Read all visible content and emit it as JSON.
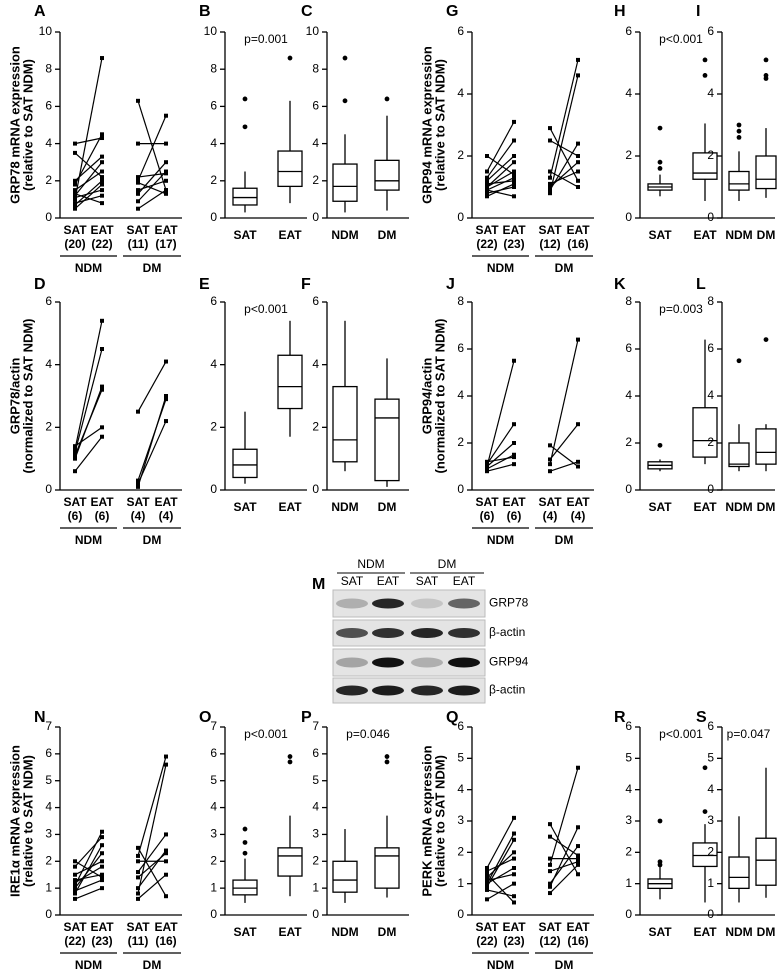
{
  "chart_data": [
    {
      "type": "line",
      "panel": "A",
      "ylabel": [
        "GRP78 mRNA expression",
        "(relative to SAT NDM)"
      ],
      "ylim": [
        0,
        10
      ],
      "yticks": [
        0,
        2,
        4,
        6,
        8,
        10
      ],
      "categories": [
        "SAT",
        "EAT",
        "SAT",
        "EAT"
      ],
      "n": [
        "(20)",
        "(22)",
        "(11)",
        "(17)"
      ],
      "groups": [
        {
          "name": "NDM",
          "pairs": [
            [
              0.5,
              1.8
            ],
            [
              0.8,
              1.2
            ],
            [
              1.0,
              8.6
            ],
            [
              1.2,
              3.0
            ],
            [
              1.5,
              2.5
            ],
            [
              1.8,
              4.5
            ],
            [
              0.7,
              2.0
            ],
            [
              2.0,
              3.3
            ],
            [
              1.3,
              0.8
            ],
            [
              3.5,
              2.2
            ],
            [
              4.0,
              4.3
            ],
            [
              1.1,
              1.5
            ]
          ]
        },
        {
          "name": "DM",
          "pairs": [
            [
              0.5,
              1.5
            ],
            [
              1.5,
              2.0
            ],
            [
              1.9,
              1.3
            ],
            [
              2.2,
              2.4
            ],
            [
              6.3,
              1.5
            ],
            [
              1.3,
              3.0
            ],
            [
              2.0,
              5.5
            ],
            [
              0.9,
              2.5
            ],
            [
              4.0,
              4.0
            ]
          ]
        }
      ]
    },
    {
      "type": "box",
      "panel": "B",
      "p": "p=0.001",
      "ylim": [
        0,
        10
      ],
      "yticks": [
        0,
        2,
        4,
        6,
        8,
        10
      ],
      "categories": [
        "SAT",
        "EAT"
      ],
      "boxes": [
        {
          "min": 0.3,
          "q1": 0.7,
          "median": 1.1,
          "q3": 1.6,
          "max": 2.5,
          "outliers": [
            4.9,
            6.4
          ]
        },
        {
          "min": 0.8,
          "q1": 1.7,
          "median": 2.5,
          "q3": 3.6,
          "max": 6.3,
          "outliers": [
            8.6
          ]
        }
      ]
    },
    {
      "type": "box",
      "panel": "C",
      "ylim": [
        0,
        10
      ],
      "yticks": [
        0,
        2,
        4,
        6,
        8,
        10
      ],
      "categories": [
        "NDM",
        "DM"
      ],
      "boxes": [
        {
          "min": 0.3,
          "q1": 0.9,
          "median": 1.7,
          "q3": 2.9,
          "max": 4.5,
          "outliers": [
            6.3,
            8.6
          ]
        },
        {
          "min": 0.4,
          "q1": 1.5,
          "median": 2.0,
          "q3": 3.1,
          "max": 5.5,
          "outliers": [
            6.4
          ]
        }
      ]
    },
    {
      "type": "line",
      "panel": "G",
      "ylabel": [
        "GRP94 mRNA expression",
        "(relative to SAT NDM)"
      ],
      "ylim": [
        0,
        6
      ],
      "yticks": [
        0,
        2,
        4,
        6
      ],
      "categories": [
        "SAT",
        "EAT",
        "SAT",
        "EAT"
      ],
      "n": [
        "(22)",
        "(23)",
        "(12)",
        "(16)"
      ],
      "groups": [
        {
          "name": "NDM",
          "pairs": [
            [
              0.8,
              1.0
            ],
            [
              0.9,
              1.3
            ],
            [
              1.0,
              1.5
            ],
            [
              1.1,
              1.2
            ],
            [
              1.2,
              2.0
            ],
            [
              2.0,
              1.4
            ],
            [
              1.5,
              3.1
            ],
            [
              0.9,
              0.7
            ],
            [
              1.0,
              1.8
            ],
            [
              1.3,
              2.5
            ],
            [
              0.7,
              1.1
            ]
          ]
        },
        {
          "name": "DM",
          "pairs": [
            [
              1.0,
              1.8
            ],
            [
              2.9,
              1.2
            ],
            [
              1.3,
              5.1
            ],
            [
              0.9,
              2.4
            ],
            [
              1.5,
              1.0
            ],
            [
              2.5,
              2.0
            ],
            [
              1.1,
              1.5
            ],
            [
              0.8,
              4.6
            ]
          ]
        }
      ]
    },
    {
      "type": "box",
      "panel": "H",
      "p": "p<0.001",
      "ylim": [
        0,
        6
      ],
      "yticks": [
        0,
        2,
        4,
        6
      ],
      "categories": [
        "SAT",
        "EAT"
      ],
      "boxes": [
        {
          "min": 0.7,
          "q1": 0.9,
          "median": 1.0,
          "q3": 1.1,
          "max": 1.4,
          "outliers": [
            1.6,
            1.8,
            2.9
          ]
        },
        {
          "min": 0.55,
          "q1": 1.25,
          "median": 1.45,
          "q3": 2.1,
          "max": 3.05,
          "outliers": [
            4.6,
            5.1
          ]
        }
      ]
    },
    {
      "type": "box",
      "panel": "I",
      "ylim": [
        0,
        6
      ],
      "yticks": [
        0,
        2,
        4,
        6
      ],
      "categories": [
        "NDM",
        "DM"
      ],
      "boxes": [
        {
          "min": 0.55,
          "q1": 0.9,
          "median": 1.1,
          "q3": 1.5,
          "max": 2.15,
          "outliers": [
            2.6,
            2.8,
            3.0
          ]
        },
        {
          "min": 0.65,
          "q1": 0.95,
          "median": 1.25,
          "q3": 2.0,
          "max": 2.9,
          "outliers": [
            4.5,
            4.6,
            5.1
          ]
        }
      ]
    },
    {
      "type": "line",
      "panel": "D",
      "ylabel": [
        "GRP78/actin",
        "(normalized to SAT NDM)"
      ],
      "ylim": [
        0,
        6
      ],
      "yticks": [
        0,
        2,
        4,
        6
      ],
      "categories": [
        "SAT",
        "EAT",
        "SAT",
        "EAT"
      ],
      "n": [
        "(6)",
        "(6)",
        "(4)",
        "(4)"
      ],
      "groups": [
        {
          "name": "NDM",
          "pairs": [
            [
              0.6,
              1.7
            ],
            [
              1.0,
              3.3
            ],
            [
              1.2,
              4.5
            ],
            [
              1.3,
              5.4
            ],
            [
              1.4,
              2.0
            ],
            [
              1.1,
              3.2
            ]
          ]
        },
        {
          "name": "DM",
          "pairs": [
            [
              2.5,
              4.1
            ],
            [
              0.2,
              2.2
            ],
            [
              0.3,
              2.9
            ],
            [
              0.1,
              3.0
            ]
          ]
        }
      ]
    },
    {
      "type": "box",
      "panel": "E",
      "p": "p<0.001",
      "ylim": [
        0,
        6
      ],
      "yticks": [
        0,
        2,
        4,
        6
      ],
      "categories": [
        "SAT",
        "EAT"
      ],
      "boxes": [
        {
          "min": 0.2,
          "q1": 0.4,
          "median": 0.8,
          "q3": 1.3,
          "max": 2.5,
          "outliers": []
        },
        {
          "min": 1.7,
          "q1": 2.6,
          "median": 3.3,
          "q3": 4.3,
          "max": 5.4,
          "outliers": []
        }
      ]
    },
    {
      "type": "box",
      "panel": "F",
      "ylim": [
        0,
        6
      ],
      "yticks": [
        0,
        2,
        4,
        6
      ],
      "categories": [
        "NDM",
        "DM"
      ],
      "boxes": [
        {
          "min": 0.6,
          "q1": 0.9,
          "median": 1.6,
          "q3": 3.3,
          "max": 5.4,
          "outliers": []
        },
        {
          "min": 0.1,
          "q1": 0.3,
          "median": 2.3,
          "q3": 2.9,
          "max": 4.2,
          "outliers": []
        }
      ]
    },
    {
      "type": "line",
      "panel": "J",
      "ylabel": [
        "GRP94/actin",
        "(normalized to SAT NDM)"
      ],
      "ylim": [
        0,
        8
      ],
      "yticks": [
        0,
        2,
        4,
        6,
        8
      ],
      "categories": [
        "SAT",
        "EAT",
        "SAT",
        "EAT"
      ],
      "n": [
        "(6)",
        "(6)",
        "(4)",
        "(4)"
      ],
      "groups": [
        {
          "name": "NDM",
          "pairs": [
            [
              0.8,
              1.1
            ],
            [
              0.9,
              1.5
            ],
            [
              1.0,
              2.0
            ],
            [
              1.1,
              2.8
            ],
            [
              1.0,
              5.5
            ],
            [
              1.2,
              1.4
            ]
          ]
        },
        {
          "name": "DM",
          "pairs": [
            [
              0.8,
              1.2
            ],
            [
              1.3,
              2.8
            ],
            [
              1.9,
              1.0
            ],
            [
              1.1,
              6.4
            ]
          ]
        }
      ]
    },
    {
      "type": "box",
      "panel": "K",
      "p": "p=0.003",
      "ylim": [
        0,
        8
      ],
      "yticks": [
        0,
        2,
        4,
        6,
        8
      ],
      "categories": [
        "SAT",
        "EAT"
      ],
      "boxes": [
        {
          "min": 0.8,
          "q1": 0.9,
          "median": 1.05,
          "q3": 1.2,
          "max": 1.3,
          "outliers": [
            1.9
          ]
        },
        {
          "min": 1.1,
          "q1": 1.4,
          "median": 2.1,
          "q3": 3.5,
          "max": 6.4,
          "outliers": []
        }
      ]
    },
    {
      "type": "box",
      "panel": "L",
      "ylim": [
        0,
        8
      ],
      "yticks": [
        0,
        2,
        4,
        6,
        8
      ],
      "categories": [
        "NDM",
        "DM"
      ],
      "boxes": [
        {
          "min": 0.8,
          "q1": 1.0,
          "median": 1.1,
          "q3": 2.0,
          "max": 2.8,
          "outliers": [
            5.5
          ]
        },
        {
          "min": 0.8,
          "q1": 1.1,
          "median": 1.6,
          "q3": 2.6,
          "max": 2.8,
          "outliers": [
            6.4
          ]
        }
      ]
    },
    {
      "type": "line",
      "panel": "N",
      "ylabel": [
        "IRE1α mRNA expression",
        "(relative to SAT NDM)"
      ],
      "ylim": [
        0,
        7
      ],
      "yticks": [
        0,
        1,
        2,
        3,
        4,
        5,
        6,
        7
      ],
      "categories": [
        "SAT",
        "EAT",
        "SAT",
        "EAT"
      ],
      "n": [
        "(22)",
        "(23)",
        "(11)",
        "(16)"
      ],
      "groups": [
        {
          "name": "NDM",
          "pairs": [
            [
              0.6,
              1.0
            ],
            [
              0.9,
              1.3
            ],
            [
              1.2,
              1.8
            ],
            [
              1.5,
              2.0
            ],
            [
              2.0,
              1.4
            ],
            [
              1.8,
              2.9
            ],
            [
              1.0,
              2.3
            ],
            [
              1.3,
              1.5
            ],
            [
              0.8,
              2.6
            ],
            [
              1.1,
              3.1
            ]
          ]
        },
        {
          "name": "DM",
          "pairs": [
            [
              0.6,
              1.5
            ],
            [
              1.0,
              2.4
            ],
            [
              2.5,
              0.7
            ],
            [
              2.2,
              5.9
            ],
            [
              1.4,
              2.3
            ],
            [
              2.0,
              2.0
            ],
            [
              1.6,
              3.0
            ],
            [
              0.8,
              5.6
            ]
          ]
        }
      ]
    },
    {
      "type": "box",
      "panel": "O",
      "p": "p<0.001",
      "ylim": [
        0,
        7
      ],
      "yticks": [
        0,
        1,
        2,
        3,
        4,
        5,
        6,
        7
      ],
      "categories": [
        "SAT",
        "EAT"
      ],
      "boxes": [
        {
          "min": 0.45,
          "q1": 0.75,
          "median": 1.0,
          "q3": 1.3,
          "max": 2.1,
          "outliers": [
            2.3,
            2.7,
            3.2
          ]
        },
        {
          "min": 0.7,
          "q1": 1.45,
          "median": 2.2,
          "q3": 2.5,
          "max": 3.7,
          "outliers": [
            5.7,
            5.9
          ]
        }
      ]
    },
    {
      "type": "box",
      "panel": "P",
      "p": "p=0.046",
      "ylim": [
        0,
        7
      ],
      "yticks": [
        0,
        1,
        2,
        3,
        4,
        5,
        6,
        7
      ],
      "categories": [
        "NDM",
        "DM"
      ],
      "boxes": [
        {
          "min": 0.45,
          "q1": 0.85,
          "median": 1.3,
          "q3": 2.0,
          "max": 3.2,
          "outliers": []
        },
        {
          "min": 0.65,
          "q1": 1.0,
          "median": 2.2,
          "q3": 2.5,
          "max": 3.7,
          "outliers": [
            5.7,
            5.9
          ]
        }
      ]
    },
    {
      "type": "line",
      "panel": "Q",
      "ylabel": [
        "PERK mRNA expression",
        "(relative to SAT NDM)"
      ],
      "ylim": [
        0,
        6
      ],
      "yticks": [
        0,
        1,
        2,
        3,
        4,
        5,
        6
      ],
      "categories": [
        "SAT",
        "EAT",
        "SAT",
        "EAT"
      ],
      "n": [
        "(22)",
        "(23)",
        "(12)",
        "(16)"
      ],
      "groups": [
        {
          "name": "NDM",
          "pairs": [
            [
              0.5,
              1.0
            ],
            [
              0.8,
              0.6
            ],
            [
              1.0,
              1.5
            ],
            [
              1.2,
              2.0
            ],
            [
              1.4,
              1.8
            ],
            [
              1.5,
              3.1
            ],
            [
              1.1,
              1.3
            ],
            [
              0.9,
              2.4
            ],
            [
              1.3,
              0.4
            ],
            [
              1.0,
              2.6
            ]
          ]
        },
        {
          "name": "DM",
          "pairs": [
            [
              0.7,
              1.6
            ],
            [
              1.4,
              1.7
            ],
            [
              2.9,
              1.3
            ],
            [
              1.8,
              1.8
            ],
            [
              1.0,
              2.2
            ],
            [
              1.6,
              4.7
            ],
            [
              2.5,
              1.9
            ],
            [
              0.9,
              2.8
            ]
          ]
        }
      ]
    },
    {
      "type": "box",
      "panel": "R",
      "p": "p<0.001",
      "ylim": [
        0,
        6
      ],
      "yticks": [
        0,
        1,
        2,
        3,
        4,
        5,
        6
      ],
      "categories": [
        "SAT",
        "EAT"
      ],
      "boxes": [
        {
          "min": 0.5,
          "q1": 0.85,
          "median": 1.0,
          "q3": 1.15,
          "max": 1.55,
          "outliers": [
            1.6,
            1.7,
            3.0
          ]
        },
        {
          "min": 0.4,
          "q1": 1.55,
          "median": 1.9,
          "q3": 2.3,
          "max": 2.9,
          "outliers": [
            3.3,
            4.7
          ]
        }
      ]
    },
    {
      "type": "box",
      "panel": "S",
      "p": "p=0.047",
      "ylim": [
        0,
        6
      ],
      "yticks": [
        0,
        1,
        2,
        3,
        4,
        5,
        6
      ],
      "categories": [
        "NDM",
        "DM"
      ],
      "boxes": [
        {
          "min": 0.4,
          "q1": 0.85,
          "median": 1.2,
          "q3": 1.85,
          "max": 3.15,
          "outliers": []
        },
        {
          "min": 0.55,
          "q1": 0.95,
          "median": 1.75,
          "q3": 2.45,
          "max": 4.7,
          "outliers": []
        }
      ]
    }
  ],
  "blot": {
    "panel": "M",
    "groups": [
      "NDM",
      "DM"
    ],
    "lanes": [
      "SAT",
      "EAT",
      "SAT",
      "EAT"
    ],
    "rows": [
      "GRP78",
      "β-actin",
      "GRP94",
      "β-actin"
    ]
  }
}
